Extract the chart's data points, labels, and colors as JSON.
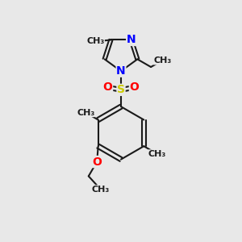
{
  "bg_color": "#e8e8e8",
  "bond_color": "#1a1a1a",
  "N_color": "#0000ff",
  "S_color": "#cccc00",
  "O_color": "#ff0000",
  "bond_width": 1.5,
  "font_size": 9,
  "figsize": [
    3.0,
    3.0
  ],
  "dpi": 100,
  "xlim": [
    0,
    10
  ],
  "ylim": [
    0,
    10
  ]
}
